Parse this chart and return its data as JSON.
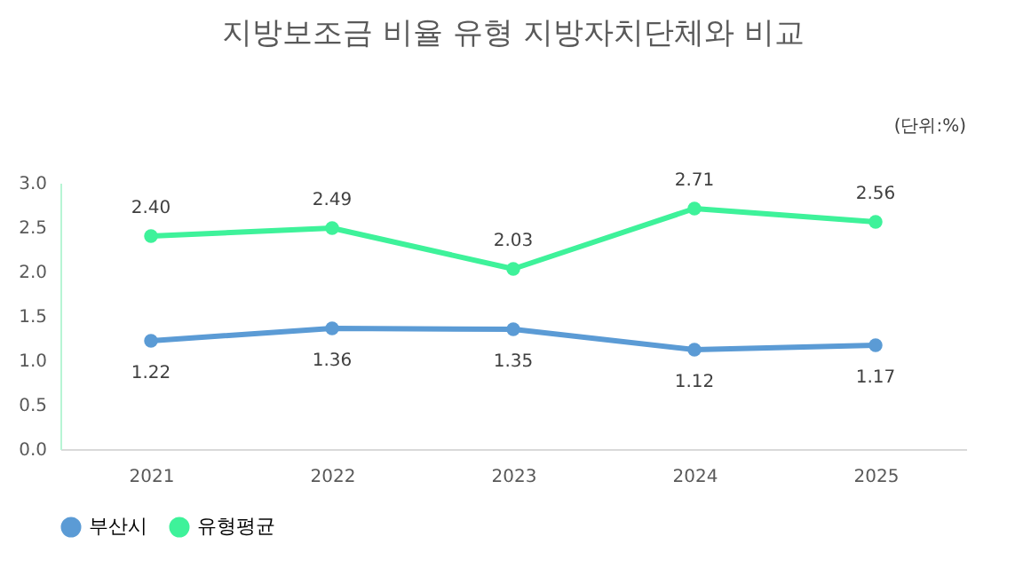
{
  "chart_data": {
    "type": "line",
    "title": "지방보조금 비율 유형 지방자치단체와 비교",
    "annotations": [
      "(단위:%)"
    ],
    "categories": [
      "2021",
      "2022",
      "2023",
      "2024",
      "2025"
    ],
    "series": [
      {
        "name": "부산시",
        "color": "#5b9bd5",
        "values": [
          1.22,
          1.36,
          1.35,
          1.12,
          1.17
        ],
        "value_labels": [
          "1.22",
          "1.36",
          "1.35",
          "1.12",
          "1.17"
        ]
      },
      {
        "name": "유형평균",
        "color": "#3ef29a",
        "values": [
          2.4,
          2.49,
          2.03,
          2.71,
          2.56
        ],
        "value_labels": [
          "2.40",
          "2.49",
          "2.03",
          "2.71",
          "2.56"
        ]
      }
    ],
    "ylim": [
      0,
      3.0
    ],
    "yticks": [
      {
        "value": 0,
        "label": "0.0"
      },
      {
        "value": 0.5,
        "label": "0.5"
      },
      {
        "value": 1.0,
        "label": "1.0"
      },
      {
        "value": 1.5,
        "label": "1.5"
      },
      {
        "value": 2.0,
        "label": "2.0"
      },
      {
        "value": 2.5,
        "label": "2.5"
      },
      {
        "value": 3.0,
        "label": "3.0"
      }
    ],
    "legend": "bottom",
    "marker": "circle",
    "line_style": "solid",
    "grid": false
  }
}
